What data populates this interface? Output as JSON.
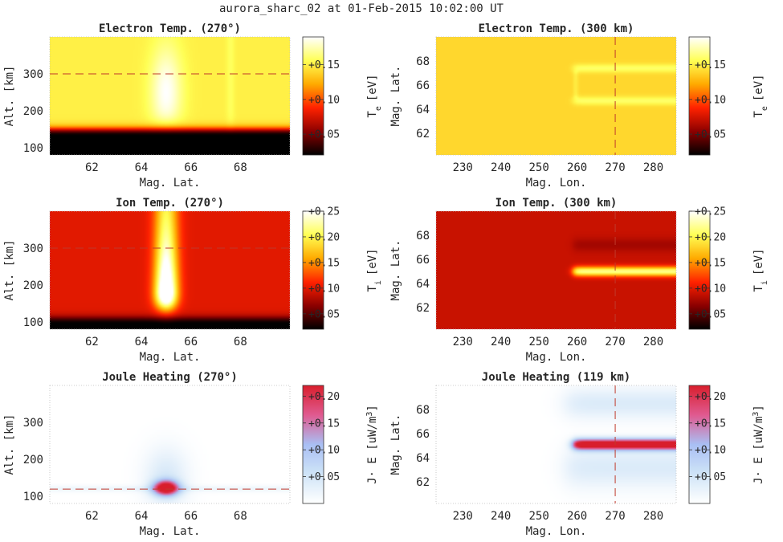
{
  "figure": {
    "suptitle": "aurora_sharc_02 at 01-Feb-2015 10:02:00 UT"
  },
  "panel_text": [
    {
      "title": "Electron Temp. (270°)",
      "xlabel": "Mag. Lat.",
      "ylabel": "Alt. [km]",
      "cblabel": "Te [eV]",
      "cblabel_main": "T",
      "cblabel_sub": "e",
      "cblabel_unit": "[eV]"
    },
    {
      "title": "Electron Temp. (300 km)",
      "xlabel": "Mag. Lon.",
      "ylabel": "Mag. Lat.",
      "cblabel": "Te [eV]",
      "cblabel_main": "T",
      "cblabel_sub": "e",
      "cblabel_unit": "[eV]"
    },
    {
      "title": "Ion Temp. (270°)",
      "xlabel": "Mag. Lat.",
      "ylabel": "Alt. [km]",
      "cblabel": "Ti [eV]",
      "cblabel_main": "T",
      "cblabel_sub": "i",
      "cblabel_unit": "[eV]"
    },
    {
      "title": "Ion Temp. (300 km)",
      "xlabel": "Mag. Lon.",
      "ylabel": "Mag. Lat.",
      "cblabel": "Ti [eV]",
      "cblabel_main": "T",
      "cblabel_sub": "i",
      "cblabel_unit": "[eV]"
    },
    {
      "title": "Joule Heating (270°)",
      "xlabel": "Mag. Lat.",
      "ylabel": "Alt. [km]",
      "cblabel": "J· E [uW/m3]",
      "cblabel_main": "J· E [uW/m",
      "cblabel_sup": "3",
      "cblabel_end": "]"
    },
    {
      "title": "Joule Heating (119 km)",
      "xlabel": "Mag. Lon.",
      "ylabel": "Mag. Lat.",
      "cblabel": "J· E [uW/m3]",
      "cblabel_main": "J· E [uW/m",
      "cblabel_sup": "3",
      "cblabel_end": "]"
    }
  ],
  "colors": {
    "hot_map": [
      "#000000",
      "#8c0000",
      "#ff2200",
      "#ffaa00",
      "#ffff55",
      "#ffffff"
    ],
    "joule_map": [
      "#ffffff",
      "#cfe4f7",
      "#a9bff4",
      "#e05a90",
      "#d81e2c"
    ],
    "reference_line": "#c0392b"
  },
  "chart_data": [
    {
      "type": "heatmap",
      "title": "Electron Temp. (270°)",
      "xlabel": "Mag. Lat.",
      "ylabel": "Alt. [km]",
      "xlim": [
        60.3,
        70.0
      ],
      "ylim": [
        80,
        400
      ],
      "xticks": [
        62,
        64,
        66,
        68
      ],
      "yticks": [
        100,
        200,
        300
      ],
      "colormap": "hot",
      "clim": [
        0.02,
        0.19
      ],
      "colorbar_label": "Te [eV]",
      "colorbar_ticks": [
        0.05,
        0.1,
        0.15
      ],
      "colorbar_ticklabels": [
        "+0.05",
        "+0.10",
        "+0.15"
      ],
      "reference_line": {
        "orientation": "horizontal",
        "value": 300
      },
      "field": {
        "background_value": 0.14,
        "low_altitude_cutoff_km": 150,
        "bright_band_lat": 65.0,
        "peak_value": 0.18,
        "secondary_band_lat": 67.6
      }
    },
    {
      "type": "heatmap",
      "title": "Electron Temp. (300 km)",
      "xlabel": "Mag. Lon.",
      "ylabel": "Mag. Lat.",
      "xlim": [
        223,
        286
      ],
      "ylim": [
        60.2,
        70.0
      ],
      "xticks": [
        230,
        240,
        250,
        260,
        270,
        280
      ],
      "yticks": [
        62,
        64,
        66,
        68
      ],
      "colormap": "hot",
      "clim": [
        0.02,
        0.19
      ],
      "colorbar_label": "Te [eV]",
      "colorbar_ticks": [
        0.05,
        0.1,
        0.15
      ],
      "colorbar_ticklabels": [
        "+0.05",
        "+0.10",
        "+0.15"
      ],
      "reference_line": {
        "orientation": "vertical",
        "value": 270
      },
      "field": {
        "background_value": 0.14,
        "feature_lon_start": 259,
        "feature_lat_range": [
          64.7,
          67.4
        ],
        "peak_value": 0.16
      }
    },
    {
      "type": "heatmap",
      "title": "Ion Temp. (270°)",
      "xlabel": "Mag. Lat.",
      "ylabel": "Alt. [km]",
      "xlim": [
        60.3,
        70.0
      ],
      "ylim": [
        80,
        400
      ],
      "xticks": [
        62,
        64,
        66,
        68
      ],
      "yticks": [
        100,
        200,
        300
      ],
      "colormap": "hot",
      "clim": [
        0.02,
        0.25
      ],
      "colorbar_label": "Ti [eV]",
      "colorbar_ticks": [
        0.05,
        0.1,
        0.15,
        0.2,
        0.25
      ],
      "colorbar_ticklabels": [
        "+0.05",
        "+0.10",
        "+0.15",
        "+0.20",
        "+0.25"
      ],
      "reference_line": {
        "orientation": "horizontal",
        "value": 300
      },
      "field": {
        "background_value": 0.09,
        "low_altitude_cutoff_km": 110,
        "bright_band_lat": 65.0,
        "peak_value": 0.25,
        "peak_altitude_km": 180
      }
    },
    {
      "type": "heatmap",
      "title": "Ion Temp. (300 km)",
      "xlabel": "Mag. Lon.",
      "ylabel": "Mag. Lat.",
      "xlim": [
        223,
        286
      ],
      "ylim": [
        60.2,
        70.0
      ],
      "xticks": [
        230,
        240,
        250,
        260,
        270,
        280
      ],
      "yticks": [
        62,
        64,
        66,
        68
      ],
      "colormap": "hot",
      "clim": [
        0.02,
        0.25
      ],
      "colorbar_label": "Ti [eV]",
      "colorbar_ticks": [
        0.05,
        0.1,
        0.15,
        0.2,
        0.25
      ],
      "colorbar_ticklabels": [
        "+0.05",
        "+0.10",
        "+0.15",
        "+0.20",
        "+0.25"
      ],
      "reference_line": {
        "orientation": "vertical",
        "value": 270
      },
      "field": {
        "background_value": 0.09,
        "feature_lon_start": 259,
        "feature_lat": 65.0,
        "peak_value": 0.22
      }
    },
    {
      "type": "heatmap",
      "title": "Joule Heating (270°)",
      "xlabel": "Mag. Lat.",
      "ylabel": "Alt. [km]",
      "xlim": [
        60.3,
        70.0
      ],
      "ylim": [
        80,
        400
      ],
      "xticks": [
        62,
        64,
        66,
        68
      ],
      "yticks": [
        100,
        200,
        300
      ],
      "colormap": "white-blue-red",
      "clim": [
        0.0,
        0.22
      ],
      "colorbar_label": "J· E [uW/m3]",
      "colorbar_ticks": [
        0.05,
        0.1,
        0.15,
        0.2
      ],
      "colorbar_ticklabels": [
        "+0.05",
        "+0.10",
        "+0.15",
        "+0.20"
      ],
      "reference_line": {
        "orientation": "horizontal",
        "value": 119
      },
      "field": {
        "peak_lat": 65.0,
        "peak_altitude_km": 122,
        "peak_value": 0.22
      }
    },
    {
      "type": "heatmap",
      "title": "Joule Heating (119 km)",
      "xlabel": "Mag. Lon.",
      "ylabel": "Mag. Lat.",
      "xlim": [
        223,
        286
      ],
      "ylim": [
        60.2,
        70.0
      ],
      "xticks": [
        230,
        240,
        250,
        260,
        270,
        280
      ],
      "yticks": [
        62,
        64,
        66,
        68
      ],
      "colormap": "white-blue-red",
      "clim": [
        0.0,
        0.22
      ],
      "colorbar_label": "J· E [uW/m3]",
      "colorbar_ticks": [
        0.05,
        0.1,
        0.15,
        0.2
      ],
      "colorbar_ticklabels": [
        "+0.05",
        "+0.10",
        "+0.15",
        "+0.20"
      ],
      "reference_line": {
        "orientation": "vertical",
        "value": 270
      },
      "field": {
        "feature_lon_start": 259,
        "feature_lat": 65.1,
        "peak_value": 0.22
      }
    }
  ]
}
